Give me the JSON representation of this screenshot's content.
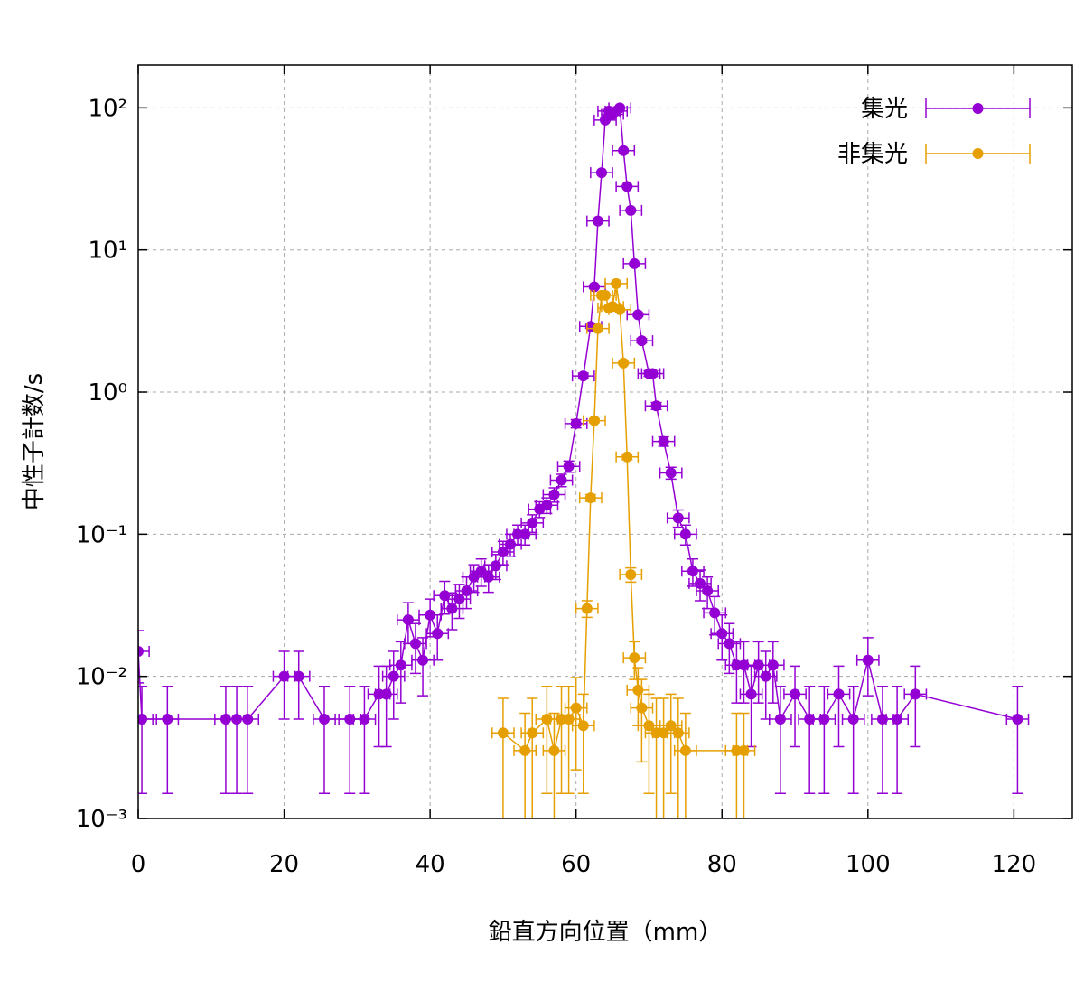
{
  "chart_data": {
    "type": "errorbar-line",
    "xlabel": "鉛直方向位置（mm）",
    "ylabel": "中性子計数/s",
    "xlim": [
      0,
      128
    ],
    "xticks": [
      0,
      20,
      40,
      60,
      80,
      100,
      120
    ],
    "ylim": [
      0.001,
      200
    ],
    "log_y": true,
    "grid": true,
    "legend": "top-right",
    "yticks": [
      {
        "value": 0.001,
        "label": "10⁻³"
      },
      {
        "value": 0.01,
        "label": "10⁻²"
      },
      {
        "value": 0.1,
        "label": "10⁻¹"
      },
      {
        "value": 1,
        "label": "10⁰"
      },
      {
        "value": 10,
        "label": "10¹"
      },
      {
        "value": 100,
        "label": "10²"
      }
    ],
    "series": [
      {
        "name": "集光",
        "color": "#9400d3",
        "xerr": 1.5,
        "x": [
          0,
          0.5,
          4,
          12,
          13.5,
          15,
          20,
          22,
          25.5,
          29,
          31,
          33,
          34,
          35,
          36,
          37,
          38,
          39,
          40,
          41,
          42,
          43,
          44,
          45,
          46,
          47,
          48,
          49,
          50,
          51,
          52,
          53,
          54,
          55,
          56,
          57,
          58,
          59,
          60,
          61,
          62,
          62.5,
          63,
          63.5,
          64,
          64.5,
          65,
          65.5,
          66,
          66.5,
          67,
          67.5,
          68,
          68.5,
          69,
          70,
          70.5,
          71,
          72,
          73,
          74,
          75,
          76,
          77,
          78,
          79,
          80,
          81,
          82,
          83,
          84,
          85,
          86,
          87,
          88,
          90,
          92,
          94,
          96,
          98,
          100,
          102,
          104,
          106.5,
          120.5
        ],
        "values": [
          0.015,
          0.005,
          0.005,
          0.005,
          0.005,
          0.005,
          0.01,
          0.01,
          0.005,
          0.005,
          0.005,
          0.0075,
          0.0075,
          0.01,
          0.012,
          0.025,
          0.017,
          0.013,
          0.027,
          0.02,
          0.037,
          0.03,
          0.035,
          0.04,
          0.05,
          0.055,
          0.05,
          0.06,
          0.075,
          0.085,
          0.1,
          0.1,
          0.12,
          0.15,
          0.16,
          0.19,
          0.24,
          0.3,
          0.6,
          1.3,
          2.9,
          5.5,
          16,
          35,
          82,
          95,
          90,
          95,
          100,
          50,
          28,
          19,
          8,
          3.5,
          2.3,
          1.35,
          1.35,
          0.8,
          0.45,
          0.27,
          0.13,
          0.1,
          0.055,
          0.045,
          0.04,
          0.028,
          0.02,
          0.017,
          0.012,
          0.012,
          0.0075,
          0.012,
          0.01,
          0.012,
          0.005,
          0.0075,
          0.005,
          0.005,
          0.0075,
          0.005,
          0.013,
          0.005,
          0.005,
          0.0075,
          0.005
        ],
        "yerr": [
          0.006,
          0.0035,
          0.0035,
          0.0035,
          0.0035,
          0.0035,
          0.005,
          0.005,
          0.0035,
          0.0035,
          0.0035,
          0.0043,
          0.0043,
          0.005,
          0.0055,
          0.008,
          0.0065,
          0.0057,
          0.008,
          0.007,
          0.0096,
          0.0087,
          0.0094,
          0.01,
          0.011,
          0.012,
          0.011,
          0.012,
          0.014,
          0.015,
          0.016,
          0.016,
          0.017,
          0.019,
          0.02,
          0.022,
          0.024,
          0.027,
          0.04,
          0.06,
          0.09,
          0.12,
          0.2,
          0.3,
          0.45,
          0.5,
          0.5,
          0.5,
          0.5,
          0.35,
          0.26,
          0.22,
          0.14,
          0.09,
          0.08,
          0.06,
          0.06,
          0.045,
          0.034,
          0.026,
          0.018,
          0.016,
          0.012,
          0.011,
          0.01,
          0.0084,
          0.007,
          0.0065,
          0.0055,
          0.0055,
          0.0043,
          0.0055,
          0.005,
          0.0055,
          0.0035,
          0.0043,
          0.0035,
          0.0035,
          0.0043,
          0.0035,
          0.0057,
          0.0035,
          0.0035,
          0.0043,
          0.0035
        ]
      },
      {
        "name": "非集光",
        "color": "#e69f00",
        "xerr": 1.5,
        "x": [
          50,
          53,
          54,
          56,
          57,
          58,
          59,
          60,
          61,
          61.5,
          62,
          62.5,
          63,
          63.5,
          64,
          64.5,
          65,
          65.5,
          66,
          66.5,
          67,
          67.5,
          68,
          68.5,
          69,
          70,
          71,
          72,
          73,
          74,
          75,
          82,
          83
        ],
        "values": [
          0.004,
          0.003,
          0.004,
          0.005,
          0.003,
          0.005,
          0.005,
          0.006,
          0.0045,
          0.03,
          0.18,
          0.63,
          2.8,
          4.8,
          4.8,
          3.9,
          4,
          5.8,
          3.8,
          1.6,
          0.35,
          0.052,
          0.0135,
          0.008,
          0.006,
          0.0045,
          0.004,
          0.004,
          0.0045,
          0.004,
          0.003,
          0.003,
          0.003
        ],
        "yerr": [
          0.003,
          0.0025,
          0.003,
          0.0035,
          0.0025,
          0.0035,
          0.0035,
          0.0038,
          0.003,
          0.004,
          0.01,
          0.02,
          0.04,
          0.05,
          0.05,
          0.05,
          0.05,
          0.06,
          0.05,
          0.03,
          0.015,
          0.006,
          0.004,
          0.0035,
          0.0035,
          0.003,
          0.003,
          0.003,
          0.003,
          0.003,
          0.0025,
          0.0025,
          0.0025
        ]
      }
    ]
  }
}
